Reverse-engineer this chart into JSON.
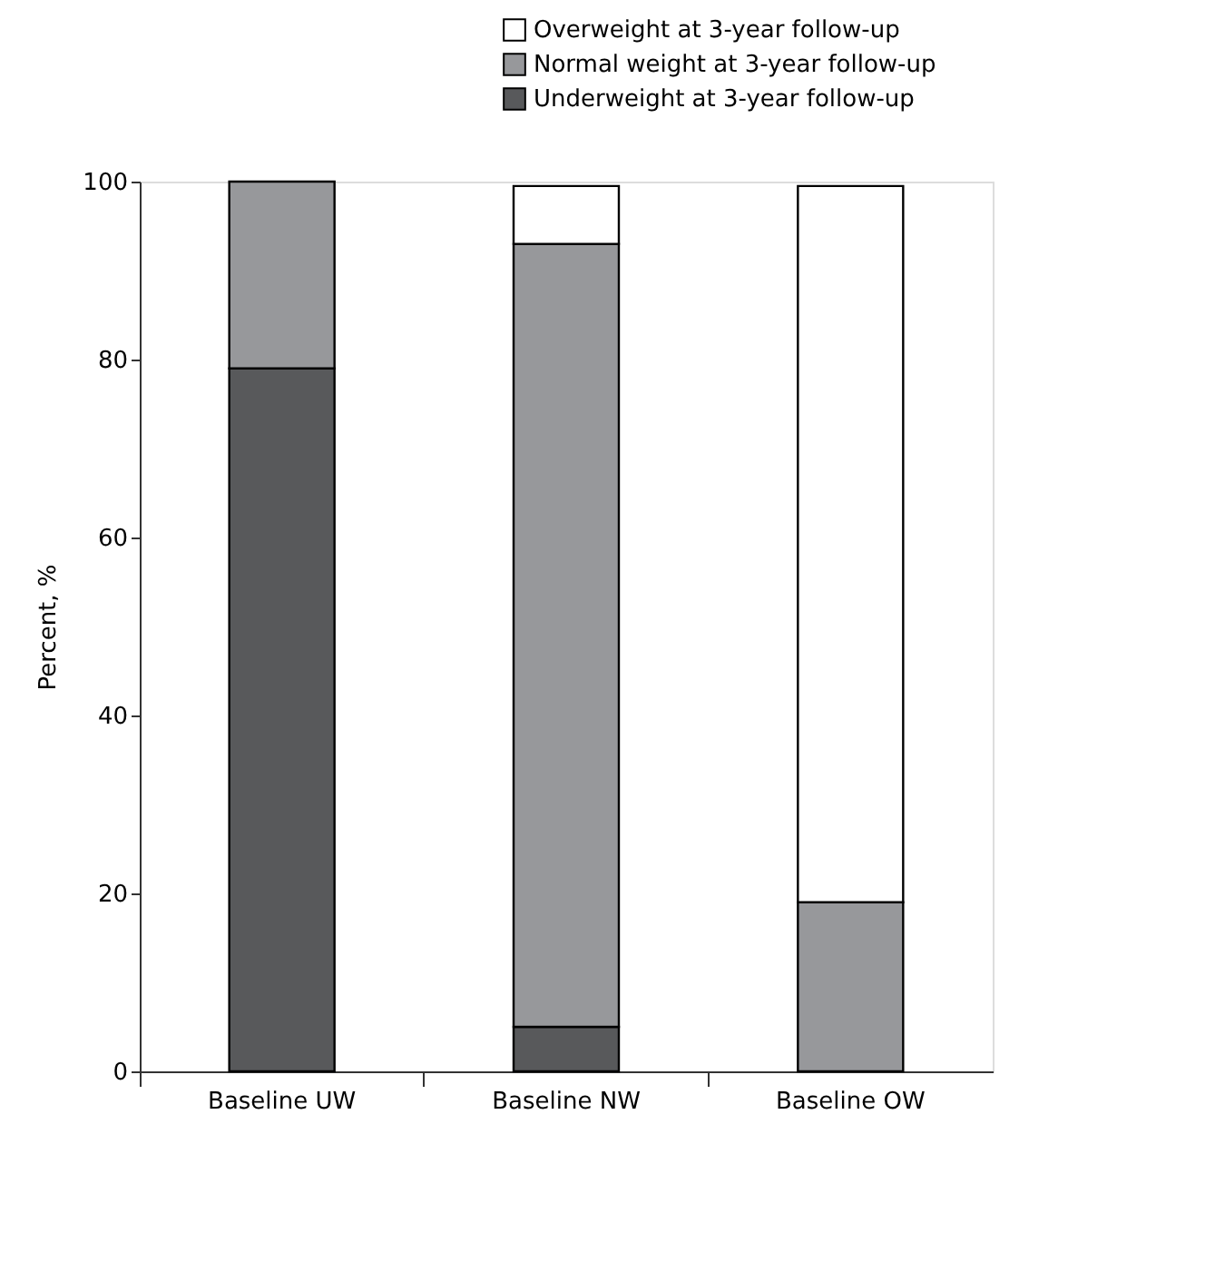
{
  "chart_data": {
    "type": "bar",
    "stacked": true,
    "ylabel": "Percent, %",
    "categories": [
      "Baseline UW",
      "Baseline NW",
      "Baseline OW"
    ],
    "series": [
      {
        "name": "Underweight at 3-year follow-up",
        "color": "#58595b",
        "values": [
          79,
          5,
          0
        ]
      },
      {
        "name": "Normal weight at 3-year follow-up",
        "color": "#97989b",
        "values": [
          21,
          88,
          19
        ]
      },
      {
        "name": "Overweight at 3-year follow-up",
        "color": "#ffffff",
        "values": [
          0,
          6.5,
          80.5
        ]
      }
    ],
    "ylim": [
      0,
      100
    ],
    "yticks": [
      0,
      20,
      40,
      60,
      80,
      100
    ],
    "grid": false,
    "legend": "top right"
  }
}
